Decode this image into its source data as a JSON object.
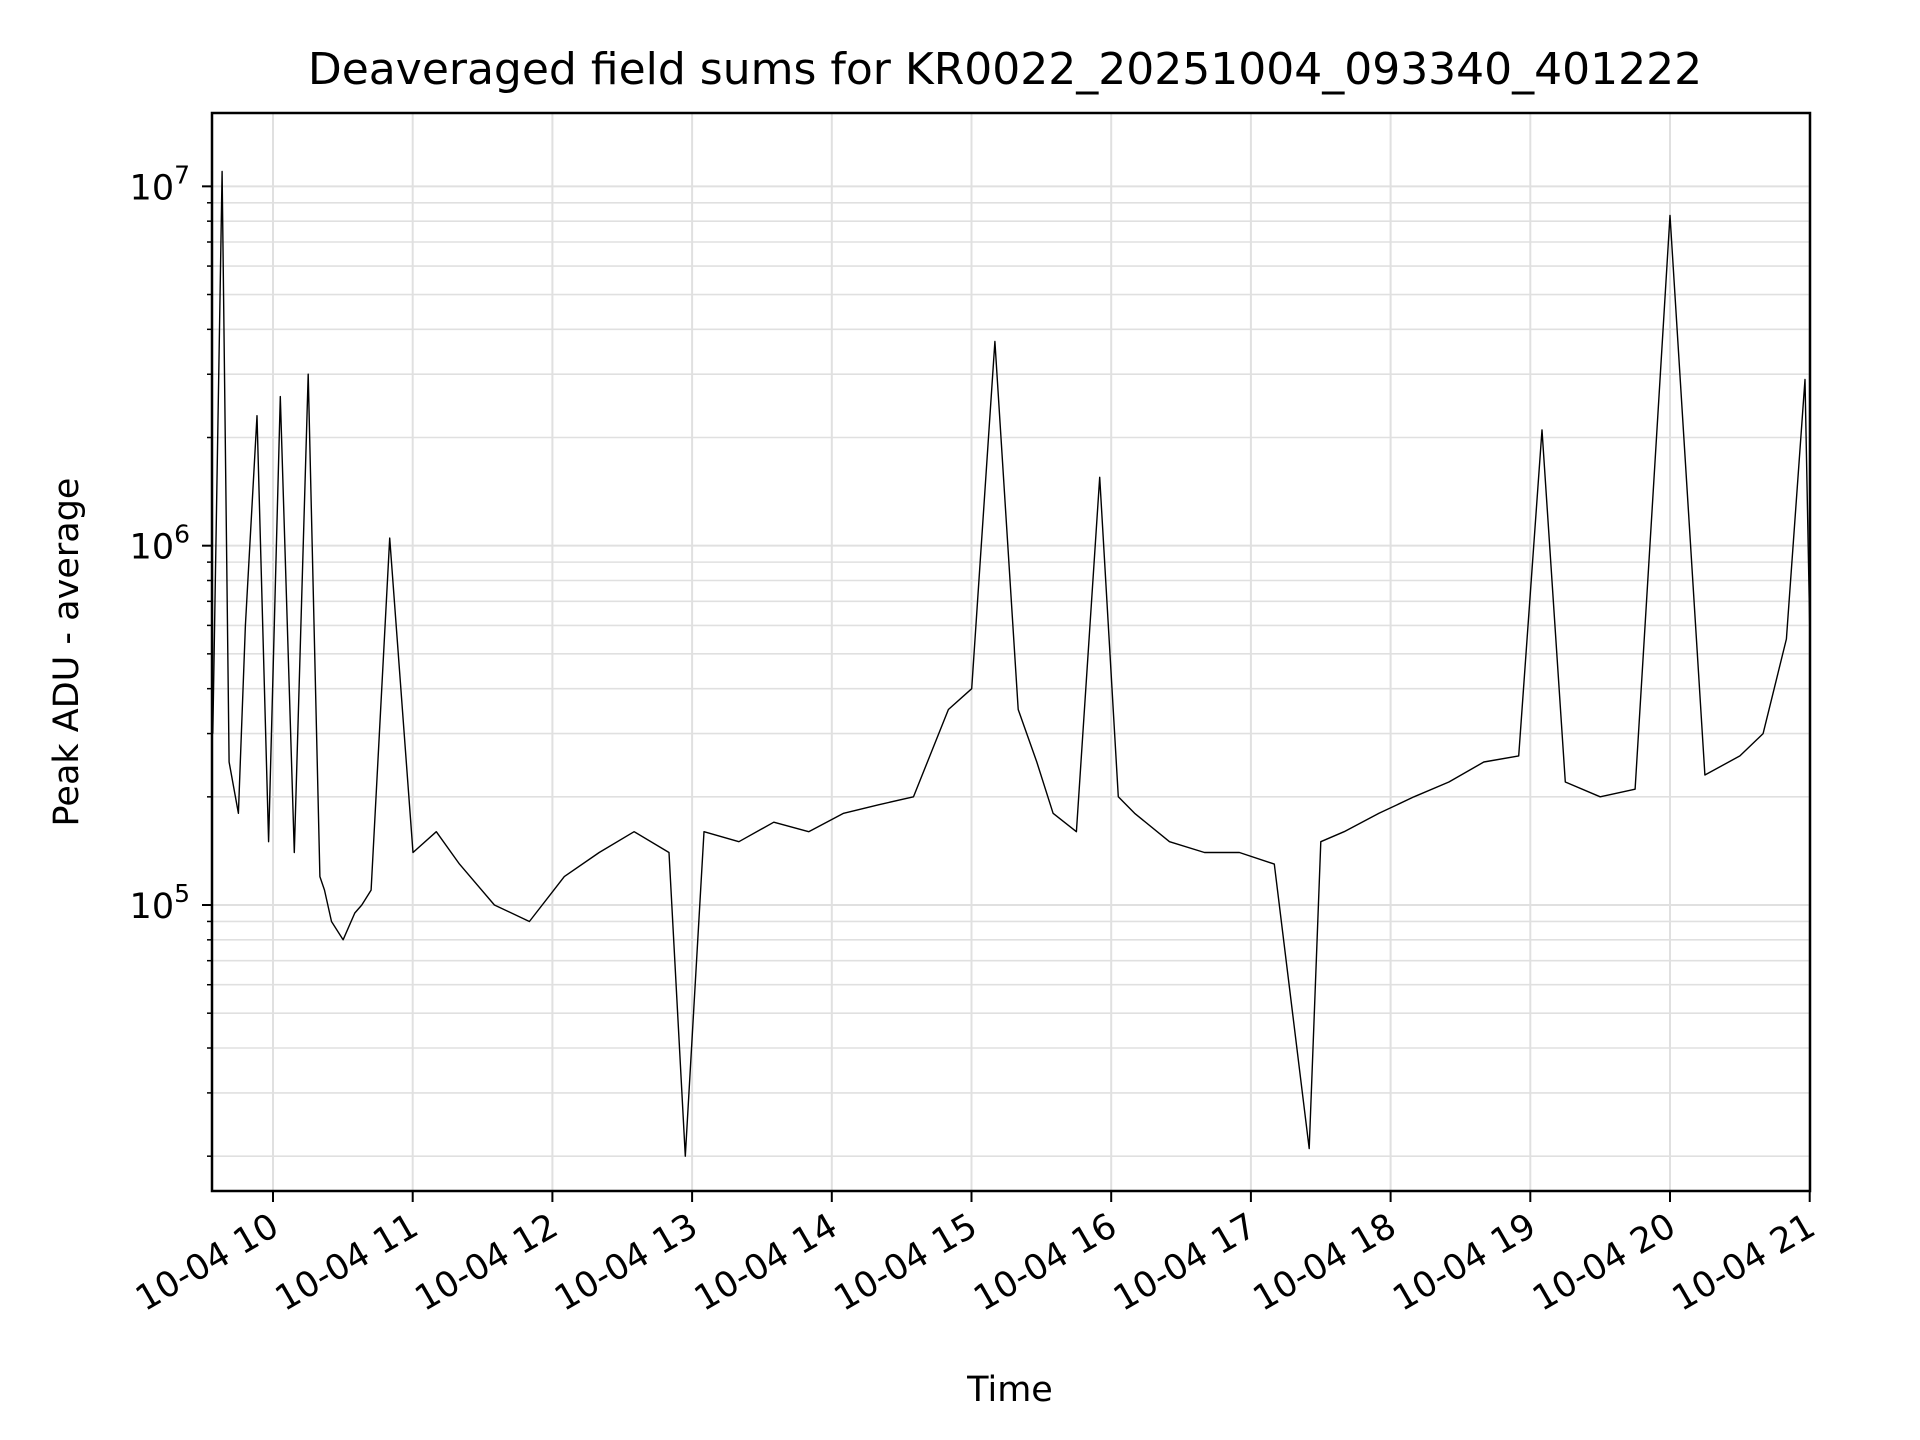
{
  "chart_data": {
    "type": "line",
    "title": "Deaveraged field sums for KR0022_20251004_093340_401222",
    "xlabel": "Time",
    "ylabel": "Peak ADU - average",
    "x_ticks": [
      "10-04 10",
      "10-04 11",
      "10-04 12",
      "10-04 13",
      "10-04 14",
      "10-04 15",
      "10-04 16",
      "10-04 17",
      "10-04 18",
      "10-04 19",
      "10-04 20",
      "10-04 21"
    ],
    "y_ticks": [
      {
        "base": "10",
        "exp": "5",
        "value": 100000
      },
      {
        "base": "10",
        "exp": "6",
        "value": 1000000
      },
      {
        "base": "10",
        "exp": "7",
        "value": 10000000
      }
    ],
    "y_scale": "log",
    "xlim": [
      "2025-10-04 09:33:40",
      "2025-10-04 21:00:00"
    ],
    "ylim": [
      16000,
      16000000
    ],
    "grid": true,
    "line_color": "#000000",
    "grid_color": "#e0e0e0",
    "series": [
      {
        "x": [
          "2025-10-04 09:34",
          "2025-10-04 09:38",
          "2025-10-04 09:41",
          "2025-10-04 09:45",
          "2025-10-04 09:48",
          "2025-10-04 09:53",
          "2025-10-04 09:58",
          "2025-10-04 10:03",
          "2025-10-04 10:09",
          "2025-10-04 10:15",
          "2025-10-04 10:20",
          "2025-10-04 10:22",
          "2025-10-04 10:25",
          "2025-10-04 10:30",
          "2025-10-04 10:35",
          "2025-10-04 10:38",
          "2025-10-04 10:42",
          "2025-10-04 10:50",
          "2025-10-04 11:00",
          "2025-10-04 11:10",
          "2025-10-04 11:20",
          "2025-10-04 11:35",
          "2025-10-04 11:50",
          "2025-10-04 12:05",
          "2025-10-04 12:20",
          "2025-10-04 12:35",
          "2025-10-04 12:50",
          "2025-10-04 12:57",
          "2025-10-04 13:05",
          "2025-10-04 13:20",
          "2025-10-04 13:35",
          "2025-10-04 13:50",
          "2025-10-04 14:05",
          "2025-10-04 14:20",
          "2025-10-04 14:35",
          "2025-10-04 14:50",
          "2025-10-04 15:00",
          "2025-10-04 15:10",
          "2025-10-04 15:20",
          "2025-10-04 15:28",
          "2025-10-04 15:35",
          "2025-10-04 15:45",
          "2025-10-04 15:55",
          "2025-10-04 16:03",
          "2025-10-04 16:10",
          "2025-10-04 16:25",
          "2025-10-04 16:40",
          "2025-10-04 16:55",
          "2025-10-04 17:10",
          "2025-10-04 17:25",
          "2025-10-04 17:30",
          "2025-10-04 17:40",
          "2025-10-04 17:55",
          "2025-10-04 18:10",
          "2025-10-04 18:25",
          "2025-10-04 18:40",
          "2025-10-04 18:55",
          "2025-10-04 19:05",
          "2025-10-04 19:15",
          "2025-10-04 19:30",
          "2025-10-04 19:45",
          "2025-10-04 20:00",
          "2025-10-04 20:15",
          "2025-10-04 20:30",
          "2025-10-04 20:40",
          "2025-10-04 20:50",
          "2025-10-04 20:58",
          "2025-10-04 21:00"
        ],
        "y": [
          300000,
          11000000,
          250000,
          180000,
          600000,
          2300000,
          150000,
          2600000,
          140000,
          3000000,
          120000,
          110000,
          90000,
          80000,
          95000,
          100000,
          110000,
          1050000,
          140000,
          160000,
          130000,
          100000,
          90000,
          120000,
          140000,
          160000,
          140000,
          20000,
          160000,
          150000,
          170000,
          160000,
          180000,
          190000,
          200000,
          350000,
          400000,
          3700000,
          350000,
          250000,
          180000,
          160000,
          1550000,
          200000,
          180000,
          150000,
          140000,
          140000,
          130000,
          21000,
          150000,
          160000,
          180000,
          200000,
          220000,
          250000,
          260000,
          2100000,
          220000,
          200000,
          210000,
          8300000,
          230000,
          260000,
          300000,
          550000,
          2900000,
          600000
        ]
      }
    ]
  }
}
